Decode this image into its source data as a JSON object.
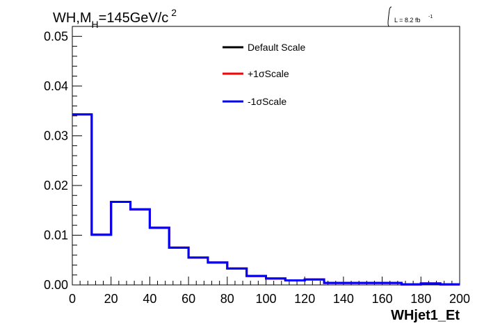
{
  "header": {
    "title_main": "WH,M",
    "title_sub": "H",
    "title_rest": "=145GeV/c",
    "title_sup": "2",
    "lumi_text": "L = 8.2 fb",
    "lumi_sup": "-1"
  },
  "legend": {
    "items": [
      {
        "label": "Default Scale",
        "color": "#000000"
      },
      {
        "label": "+1σScale",
        "color": "#ff0000"
      },
      {
        "label": "-1σScale",
        "color": "#0000ff"
      }
    ]
  },
  "chart_data": {
    "type": "histogram",
    "xlabel": "WHjet1_Et",
    "ylabel": "",
    "xlim": [
      0,
      200
    ],
    "ylim": [
      0,
      0.052
    ],
    "x_ticks": [
      "0",
      "20",
      "40",
      "60",
      "80",
      "100",
      "120",
      "140",
      "160",
      "180",
      "200"
    ],
    "y_ticks": [
      "0.00",
      "0.01",
      "0.02",
      "0.03",
      "0.04",
      "0.05"
    ],
    "bin_edges": [
      0,
      10,
      20,
      30,
      40,
      50,
      60,
      70,
      80,
      90,
      100,
      110,
      120,
      130,
      140,
      150,
      160,
      170,
      180,
      190,
      200
    ],
    "series": [
      {
        "name": "Default Scale",
        "color": "#000000",
        "values": [
          0.0343,
          0.0101,
          0.0167,
          0.0152,
          0.0115,
          0.0075,
          0.0055,
          0.0045,
          0.0033,
          0.0018,
          0.0013,
          0.0009,
          0.0011,
          0.0004,
          0.0004,
          0.0004,
          0.0004,
          0.0001,
          0.0003,
          0.0001
        ]
      },
      {
        "name": "+1σScale",
        "color": "#ff0000",
        "values": [
          0.0343,
          0.0101,
          0.0167,
          0.0152,
          0.0115,
          0.0075,
          0.0055,
          0.0045,
          0.0033,
          0.0018,
          0.0013,
          0.0009,
          0.0011,
          0.0004,
          0.0004,
          0.0004,
          0.0004,
          0.0001,
          0.0003,
          0.0001
        ]
      },
      {
        "name": "-1σScale",
        "color": "#0000ff",
        "values": [
          0.0343,
          0.0101,
          0.0167,
          0.0152,
          0.0115,
          0.0075,
          0.0055,
          0.0045,
          0.0033,
          0.0018,
          0.0013,
          0.0009,
          0.0011,
          0.0004,
          0.0004,
          0.0004,
          0.0004,
          0.0001,
          0.0003,
          0.0001
        ]
      }
    ]
  }
}
